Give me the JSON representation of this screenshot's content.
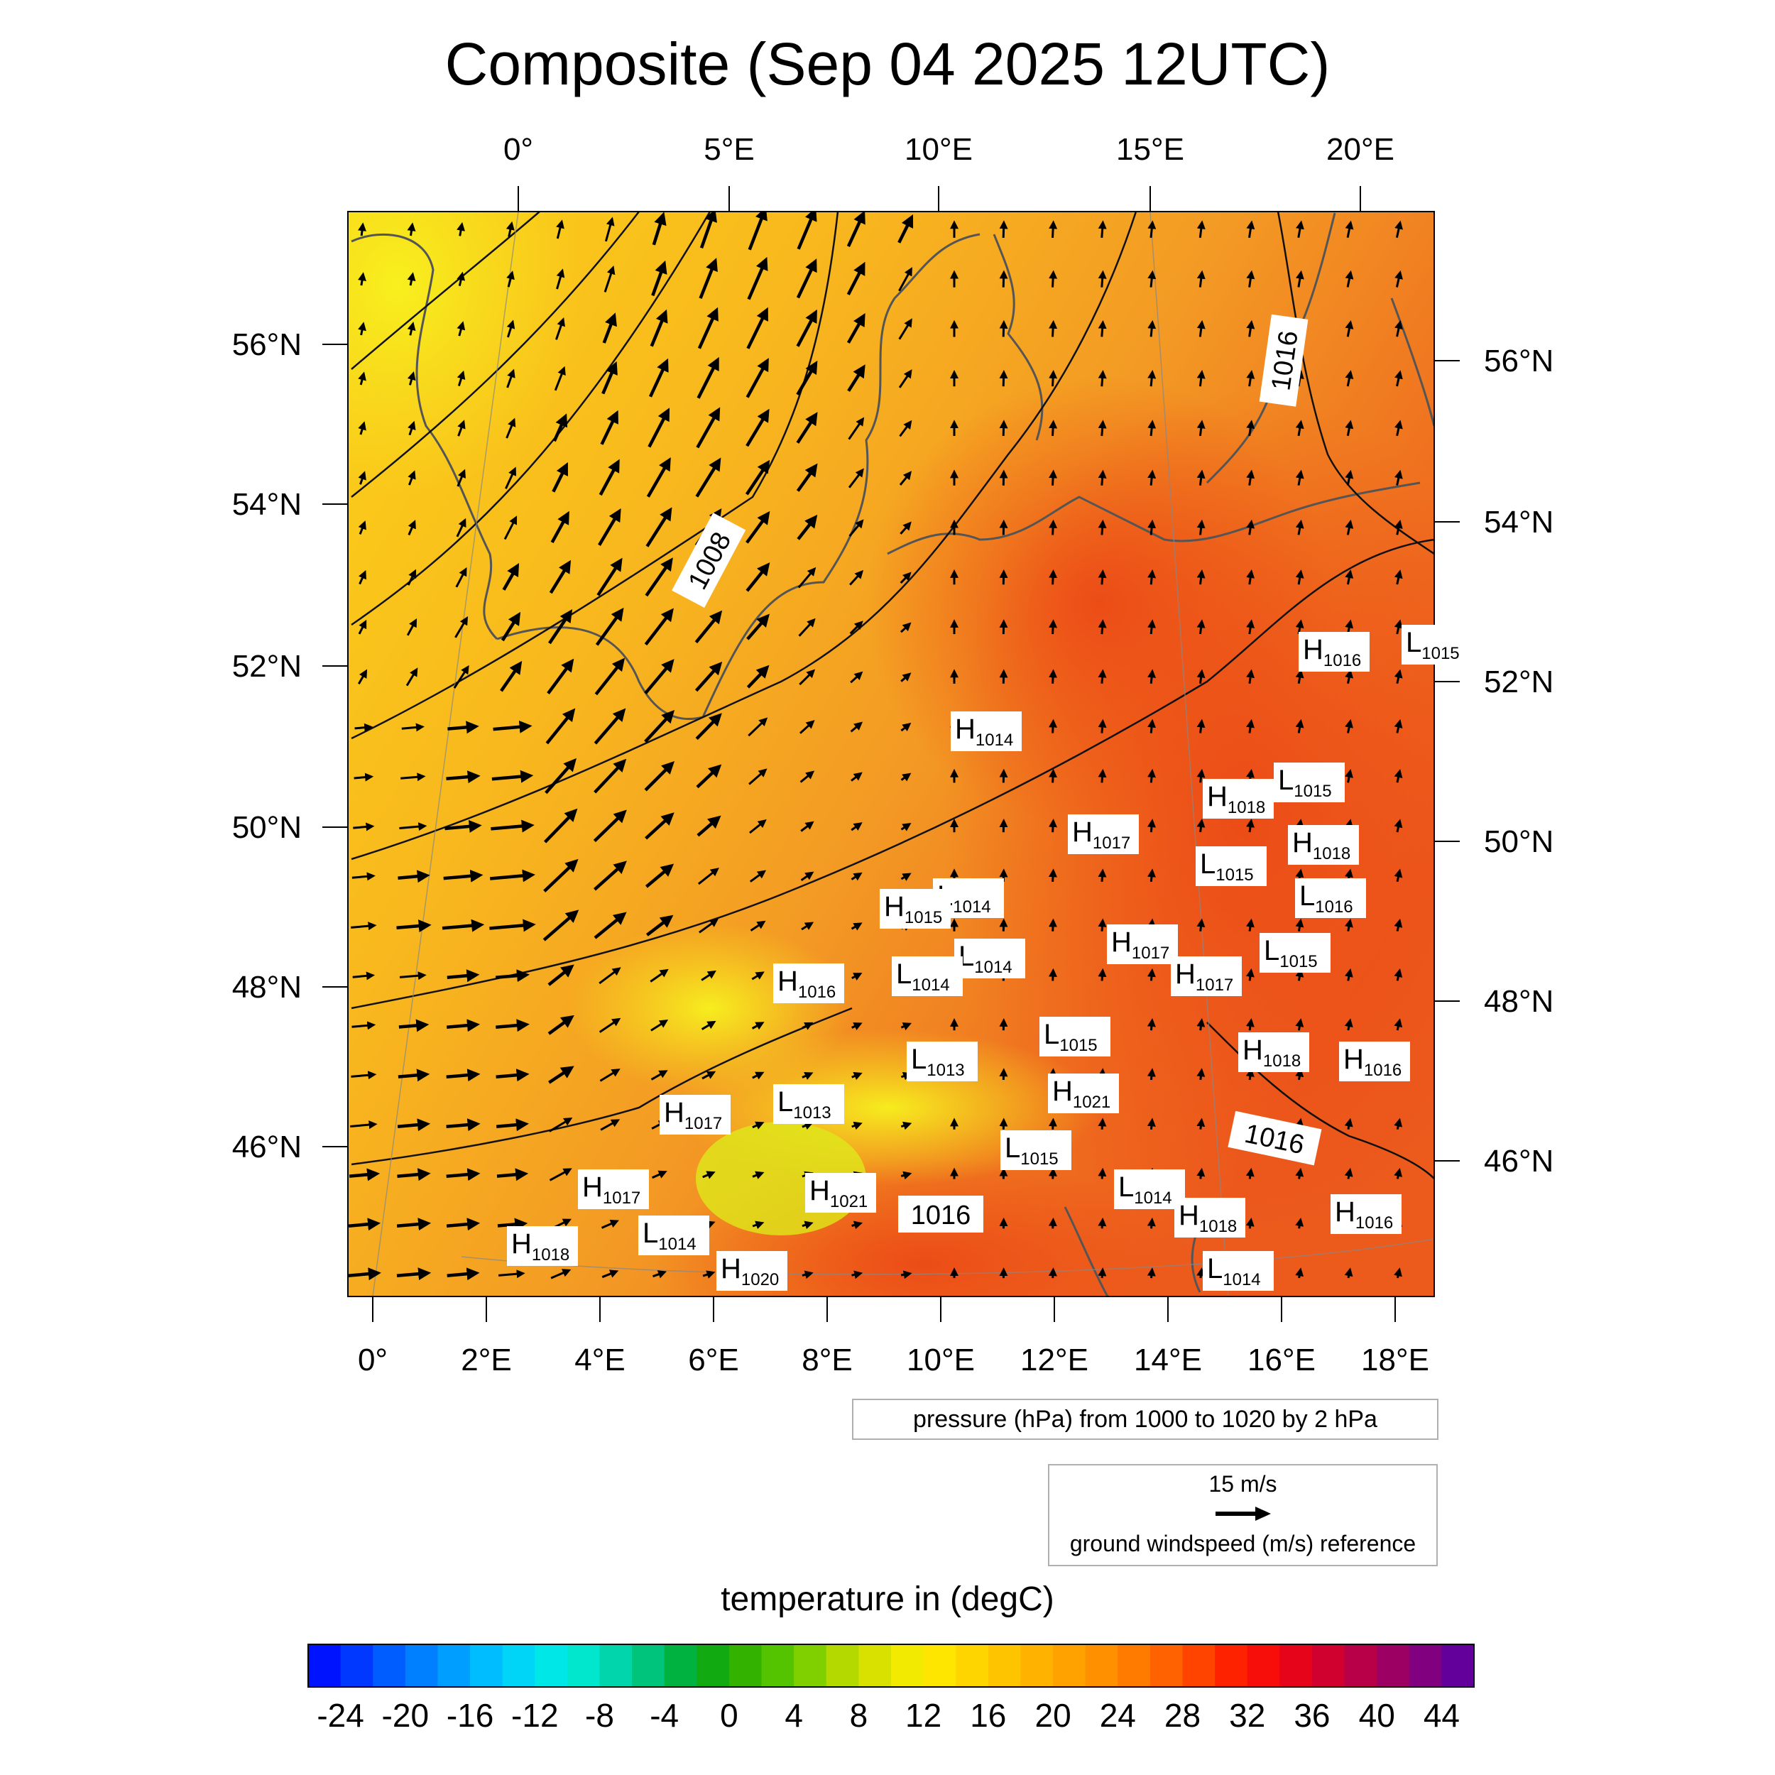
{
  "title": "Composite (Sep 04 2025 12UTC)",
  "top_axis_labels": [
    "0°",
    "5°E",
    "10°E",
    "15°E",
    "20°E"
  ],
  "bottom_axis_labels": [
    "0°",
    "2°E",
    "4°E",
    "6°E",
    "8°E",
    "10°E",
    "12°E",
    "14°E",
    "16°E",
    "18°E"
  ],
  "left_axis_labels": [
    "56°N",
    "54°N",
    "52°N",
    "50°N",
    "48°N",
    "46°N"
  ],
  "right_axis_labels": [
    "56°N",
    "54°N",
    "52°N",
    "50°N",
    "48°N",
    "46°N"
  ],
  "contour_labels": [
    "1008",
    "1016",
    "1016",
    "1016"
  ],
  "pressure_centers": [
    {
      "kind": "H",
      "value": "1014"
    },
    {
      "kind": "L",
      "value": "1015"
    },
    {
      "kind": "H",
      "value": "1018"
    },
    {
      "kind": "H",
      "value": "1017"
    },
    {
      "kind": "H",
      "value": "1018"
    },
    {
      "kind": "L",
      "value": "1015"
    },
    {
      "kind": "L",
      "value": "1016"
    },
    {
      "kind": "L",
      "value": "1014"
    },
    {
      "kind": "H",
      "value": "1015"
    },
    {
      "kind": "H",
      "value": "1017"
    },
    {
      "kind": "H",
      "value": "1017"
    },
    {
      "kind": "L",
      "value": "1015"
    },
    {
      "kind": "L",
      "value": "1014"
    },
    {
      "kind": "L",
      "value": "1014"
    },
    {
      "kind": "H",
      "value": "1016"
    },
    {
      "kind": "L",
      "value": "1015"
    },
    {
      "kind": "L",
      "value": "1013"
    },
    {
      "kind": "H",
      "value": "1018"
    },
    {
      "kind": "H",
      "value": "1016"
    },
    {
      "kind": "H",
      "value": "1021"
    },
    {
      "kind": "L",
      "value": "1013"
    },
    {
      "kind": "H",
      "value": "1017"
    },
    {
      "kind": "L",
      "value": "1015"
    },
    {
      "kind": "H",
      "value": "1021"
    },
    {
      "kind": "H",
      "value": "1017"
    },
    {
      "kind": "L",
      "value": "1014"
    },
    {
      "kind": "H",
      "value": "1018"
    },
    {
      "kind": "L",
      "value": "1014"
    },
    {
      "kind": "H",
      "value": "1018"
    },
    {
      "kind": "H",
      "value": "1016"
    },
    {
      "kind": "L",
      "value": "1014"
    },
    {
      "kind": "H",
      "value": "1020"
    },
    {
      "kind": "H",
      "value": "1016"
    },
    {
      "kind": "L",
      "value": "1015"
    }
  ],
  "pressure_legend": "pressure (hPa) from 1000 to 1020 by 2 hPa",
  "wind_legend": {
    "speed": "15 m/s",
    "description": "ground windspeed (m/s) reference"
  },
  "colorbar": {
    "title": "temperature in (degC)",
    "labels": [
      "-24",
      "-20",
      "-16",
      "-12",
      "-8",
      "-4",
      "0",
      "4",
      "8",
      "12",
      "16",
      "20",
      "24",
      "28",
      "32",
      "36",
      "40",
      "44"
    ],
    "min": -26,
    "max": 46,
    "step": 2
  },
  "colors": {
    "warm_map": "#f5a623",
    "hot_map": "#ee5a1a",
    "cool_map": "#f8d21e",
    "arrow": "#000000"
  }
}
